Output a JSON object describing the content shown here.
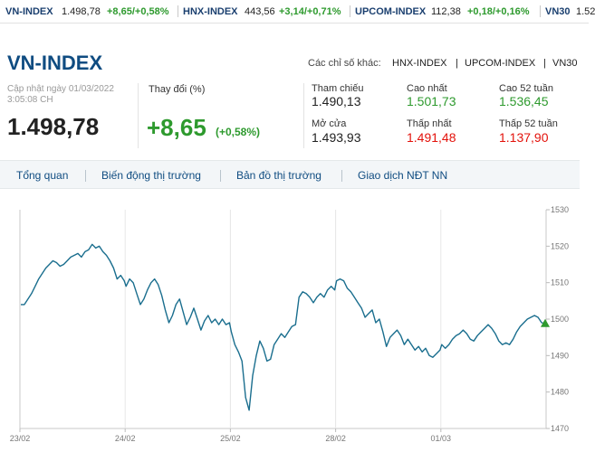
{
  "ticker": [
    {
      "name": "VN-INDEX",
      "value": "1.498,78",
      "change": "+8,65/+0,58%"
    },
    {
      "name": "HNX-INDEX",
      "value": "443,56",
      "change": "+3,14/+0,71%"
    },
    {
      "name": "UPCOM-INDEX",
      "value": "112,38",
      "change": "+0,18/+0,16%"
    },
    {
      "name": "VN30",
      "value": "1.52"
    }
  ],
  "header": {
    "title": "VN-INDEX",
    "other_label": "Các chỉ số khác:",
    "other_links": [
      "HNX-INDEX",
      "UPCOM-INDEX",
      "VN30"
    ],
    "separator": "|"
  },
  "summary": {
    "updated": "Cập nhật ngày 01/03/2022 3:05:08 CH",
    "price": "1.498,78",
    "change_label": "Thay đổi (%)",
    "change_value": "+8,65",
    "change_pct": "(+0,58%)"
  },
  "stats": [
    {
      "label": "Tham chiếu",
      "value": "1.490,13",
      "color": "#222222"
    },
    {
      "label": "Cao nhất",
      "value": "1.501,73",
      "color": "#2e9a2e"
    },
    {
      "label": "Cao 52 tuần",
      "value": "1.536,45",
      "color": "#2e9a2e"
    },
    {
      "label": "Mở cửa",
      "value": "1.493,93",
      "color": "#222222"
    },
    {
      "label": "Thấp nhất",
      "value": "1.491,48",
      "color": "#e3120b"
    },
    {
      "label": "Thấp 52 tuần",
      "value": "1.137,90",
      "color": "#e3120b"
    }
  ],
  "tabs": [
    "Tổng quan",
    "Biến động thị trường",
    "Bản đồ thị trường",
    "Giao dịch NĐT NN"
  ],
  "colors": {
    "up": "#2e9a2e",
    "down": "#e3120b",
    "brand": "#0f4c81",
    "line": "#1a6e8e"
  },
  "chart_data": {
    "type": "line",
    "x_tick_labels": [
      "23/02",
      "24/02",
      "25/02",
      "28/02",
      "01/03"
    ],
    "y_ticks": [
      1470,
      1480,
      1490,
      1500,
      1510,
      1520,
      1530
    ],
    "ylim": [
      1470,
      1530
    ],
    "grid": "vertical lines at x ticks",
    "series": [
      {
        "sessions": [
          {
            "date": "23/02",
            "values": [
              1504.0,
              1504.0,
              1505.5,
              1507.0,
              1509.0,
              1511.0,
              1512.5,
              1514.0,
              1515.0,
              1516.0,
              1515.5,
              1514.5,
              1515.0,
              1516.0,
              1517.0,
              1517.5,
              1518.0,
              1517.0,
              1518.5,
              1519.0,
              1520.5,
              1519.5,
              1520.0,
              1518.5,
              1517.5,
              1516.0,
              1514.0,
              1511.0,
              1512.0,
              1510.5
            ]
          },
          {
            "date": "24/02",
            "values": [
              1509.0,
              1511.0,
              1510.0,
              1507.0,
              1504.0,
              1505.5,
              1508.0,
              1510.0,
              1511.0,
              1509.5,
              1506.5,
              1502.5,
              1499.0,
              1501.0,
              1504.0,
              1505.5,
              1502.0,
              1498.5,
              1500.5,
              1503.0,
              1500.0,
              1497.0,
              1499.5,
              1501.0,
              1499.0,
              1500.0,
              1498.5,
              1500.0,
              1498.5,
              1499.0
            ]
          },
          {
            "date": "25/02",
            "values": [
              1496.5,
              1493.0,
              1491.0,
              1488.5,
              1478.5,
              1475.0,
              1484.5,
              1490.0,
              1494.0,
              1492.0,
              1488.5,
              1489.0,
              1493.0,
              1494.5,
              1496.0,
              1495.0,
              1496.5,
              1498.0,
              1498.5,
              1506.0,
              1507.5,
              1507.0,
              1506.0,
              1504.5,
              1506.0,
              1507.0,
              1506.0,
              1508.0,
              1509.0,
              1508.0
            ]
          },
          {
            "date": "28/02",
            "values": [
              1510.5,
              1511.0,
              1510.5,
              1508.5,
              1507.5,
              1506.0,
              1504.5,
              1503.0,
              1500.5,
              1501.5,
              1502.5,
              1499.0,
              1500.0,
              1496.5,
              1492.5,
              1495.0,
              1496.0,
              1497.0,
              1495.5,
              1493.0,
              1494.5,
              1493.0,
              1491.5,
              1492.5,
              1491.0,
              1492.0,
              1490.0,
              1489.5,
              1490.5,
              1491.5
            ]
          },
          {
            "date": "01/03",
            "values": [
              1493.0,
              1492.0,
              1493.0,
              1494.5,
              1495.5,
              1496.0,
              1497.0,
              1496.0,
              1494.5,
              1494.0,
              1495.5,
              1496.5,
              1497.5,
              1498.5,
              1497.5,
              1496.0,
              1494.0,
              1493.0,
              1493.5,
              1493.0,
              1494.5,
              1496.5,
              1498.0,
              1499.0,
              1500.0,
              1500.5,
              1501.0,
              1500.5,
              1499.0,
              1498.8
            ]
          }
        ]
      }
    ]
  }
}
